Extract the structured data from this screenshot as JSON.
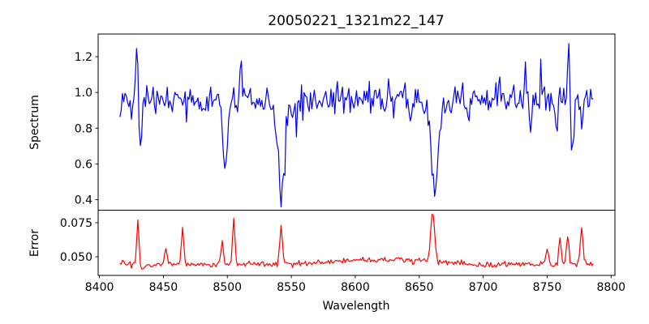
{
  "figure": {
    "title": "20050221_1321m22_147",
    "background": "#ffffff",
    "text_color": "#000000",
    "spine_color": "#000000"
  },
  "x_axis": {
    "label": "Wavelength",
    "ticks": [
      8400,
      8450,
      8500,
      8550,
      8600,
      8650,
      8700,
      8750,
      8800
    ],
    "xlim": [
      8399,
      8803
    ]
  },
  "chart_data": [
    {
      "type": "line",
      "name": "spectrum",
      "ylabel": "Spectrum",
      "line_color": "#0000ff",
      "yticks": [
        0.4,
        0.6,
        0.8,
        1.0,
        1.2
      ],
      "ytick_labels": [
        "0.4",
        "0.6",
        "0.8",
        "1.0",
        "1.2"
      ],
      "ylim": [
        0.341,
        1.327
      ],
      "x_range": [
        8416,
        8786
      ],
      "x_step": 1.0,
      "continuum": 0.962,
      "noise_sigma": 0.042,
      "noise_spike_prob": 0.05,
      "noise_spike_sigma": 0.055,
      "seed": 20050221,
      "features": [
        {
          "center": 8429.5,
          "amplitude": 0.28,
          "sigma": 0.7
        },
        {
          "center": 8432.0,
          "amplitude": -0.27,
          "sigma": 1.1
        },
        {
          "center": 8457.0,
          "amplitude": -0.09,
          "sigma": 1.0
        },
        {
          "center": 8468.0,
          "amplitude": -0.12,
          "sigma": 1.3
        },
        {
          "center": 8481.0,
          "amplitude": -0.08,
          "sigma": 1.0
        },
        {
          "center": 8498.3,
          "amplitude": -0.4,
          "sigma": 1.8
        },
        {
          "center": 8510.5,
          "amplitude": 0.18,
          "sigma": 0.8
        },
        {
          "center": 8542.3,
          "amplitude": -0.43,
          "sigma": 2.4
        },
        {
          "center": 8542.3,
          "amplitude": -0.09,
          "sigma": 6.5
        },
        {
          "center": 8643.0,
          "amplitude": -0.12,
          "sigma": 0.8
        },
        {
          "center": 8662.2,
          "amplitude": -0.48,
          "sigma": 2.2
        },
        {
          "center": 8662.2,
          "amplitude": -0.08,
          "sigma": 6.0
        },
        {
          "center": 8688.0,
          "amplitude": -0.11,
          "sigma": 1.4
        },
        {
          "center": 8713.0,
          "amplitude": 0.14,
          "sigma": 0.7
        },
        {
          "center": 8733.0,
          "amplitude": 0.12,
          "sigma": 0.7
        },
        {
          "center": 8737.0,
          "amplitude": -0.16,
          "sigma": 1.0
        },
        {
          "center": 8745.0,
          "amplitude": 0.14,
          "sigma": 0.7
        },
        {
          "center": 8757.0,
          "amplitude": -0.15,
          "sigma": 1.0
        },
        {
          "center": 8766.8,
          "amplitude": 0.31,
          "sigma": 0.8
        },
        {
          "center": 8769.6,
          "amplitude": -0.31,
          "sigma": 1.1
        },
        {
          "center": 8777.0,
          "amplitude": -0.1,
          "sigma": 1.0
        }
      ]
    },
    {
      "type": "line",
      "name": "error",
      "ylabel": "Error",
      "line_color": "#ff0000",
      "yticks": [
        0.05,
        0.075
      ],
      "ytick_labels": [
        "0.050",
        "0.075"
      ],
      "ylim": [
        0.0363,
        0.0842
      ],
      "x_range": [
        8416,
        8786
      ],
      "x_step": 1.0,
      "continuum": 0.0445,
      "noise_sigma": 0.0011,
      "noise_spike_prob": 0.0,
      "noise_spike_sigma": 0.0,
      "seed": 1321147,
      "features": [
        {
          "center": 8620.0,
          "amplitude": 0.0035,
          "sigma": 35.0
        },
        {
          "center": 8430.0,
          "amplitude": 0.031,
          "sigma": 0.9
        },
        {
          "center": 8433.5,
          "amplitude": -0.005,
          "sigma": 1.2
        },
        {
          "center": 8452.0,
          "amplitude": 0.011,
          "sigma": 0.9
        },
        {
          "center": 8465.0,
          "amplitude": 0.027,
          "sigma": 0.9
        },
        {
          "center": 8496.0,
          "amplitude": 0.016,
          "sigma": 0.9
        },
        {
          "center": 8505.0,
          "amplitude": 0.035,
          "sigma": 0.9
        },
        {
          "center": 8542.0,
          "amplitude": 0.026,
          "sigma": 1.2
        },
        {
          "center": 8660.5,
          "amplitude": 0.037,
          "sigma": 1.5
        },
        {
          "center": 8750.0,
          "amplitude": 0.012,
          "sigma": 1.0
        },
        {
          "center": 8760.0,
          "amplitude": 0.018,
          "sigma": 1.0
        },
        {
          "center": 8766.0,
          "amplitude": 0.022,
          "sigma": 1.0
        },
        {
          "center": 8777.0,
          "amplitude": 0.027,
          "sigma": 1.0
        }
      ]
    }
  ]
}
